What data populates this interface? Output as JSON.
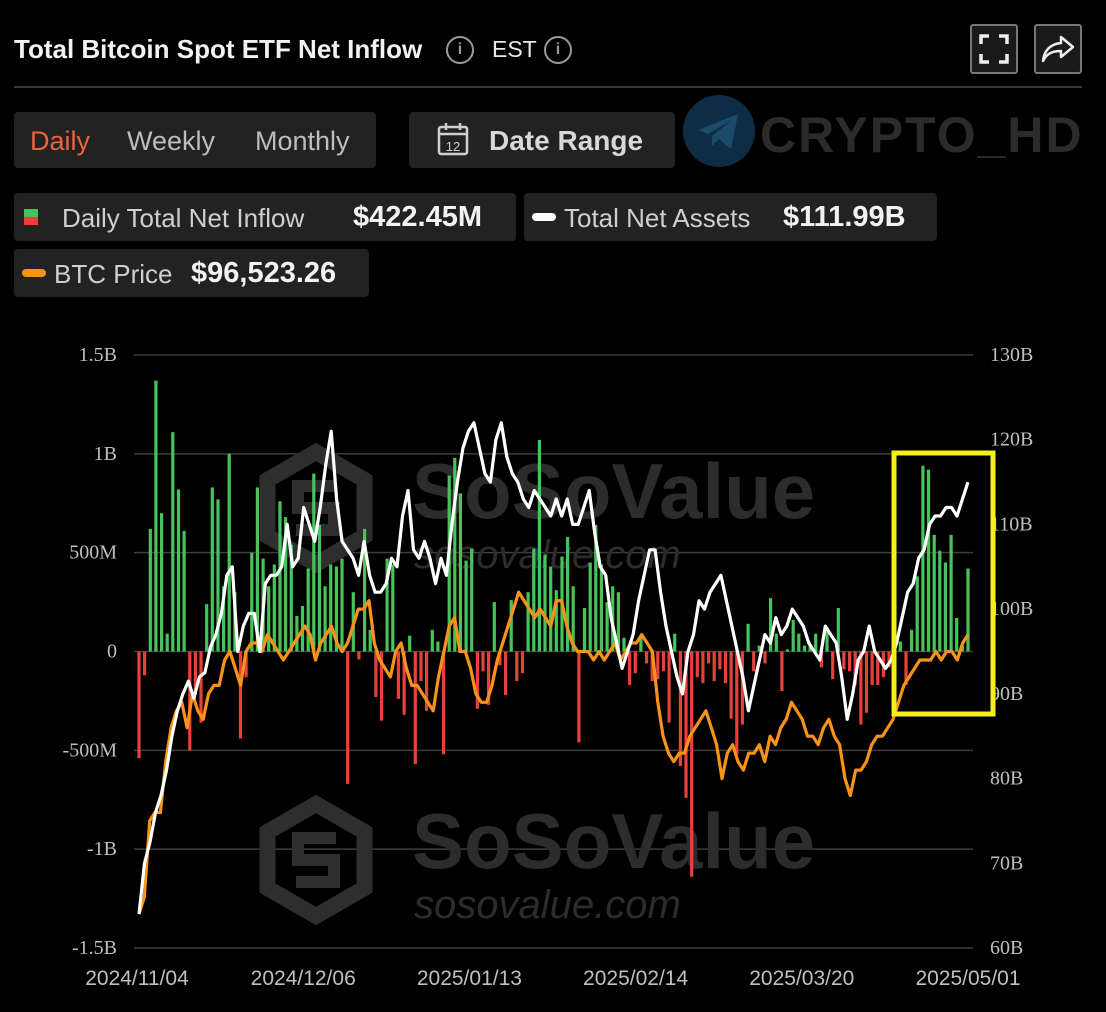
{
  "header": {
    "title": "Total Bitcoin Spot ETF Net Inflow",
    "timezone": "EST",
    "info_icon": "info-icon",
    "fullscreen_icon": "fullscreen-icon",
    "share_icon": "share-icon"
  },
  "period_tabs": [
    {
      "label": "Daily",
      "active": true
    },
    {
      "label": "Weekly",
      "active": false
    },
    {
      "label": "Monthly",
      "active": false
    }
  ],
  "date_range": {
    "label": "Date Range",
    "icon": "calendar-icon",
    "icon_number": "12"
  },
  "watermark_top": {
    "text": "CRYPTO_HD",
    "icon": "telegram-icon"
  },
  "legend": {
    "inflow": {
      "label": "Daily Total Net Inflow",
      "value": "$422.45M"
    },
    "assets": {
      "label": "Total Net Assets",
      "value": "$111.99B"
    },
    "btc": {
      "label": "BTC Price",
      "value": "$96,523.26"
    }
  },
  "colors": {
    "positive_bar": "#46c35a",
    "negative_bar": "#e8413b",
    "assets_line": "#ffffff",
    "btc_line": "#f7931a",
    "highlight_box": "#f5ef1a",
    "active_tab": "#f0623c"
  },
  "chart_data": {
    "type": "bar",
    "left_axis": {
      "ticks": [
        "1.5B",
        "1B",
        "500M",
        "0",
        "-500M",
        "-1B",
        "-1.5B"
      ],
      "range": [
        -1.5,
        1.5
      ],
      "unit": "B"
    },
    "right_axis": {
      "ticks": [
        "130B",
        "120B",
        "110B",
        "100B",
        "90B",
        "80B",
        "70B",
        "60B"
      ],
      "range": [
        60,
        130
      ]
    },
    "x_ticks": [
      "2024/11/04",
      "2024/12/06",
      "2025/01/13",
      "2025/02/14",
      "2025/03/20",
      "2025/05/01"
    ],
    "grid": true,
    "watermark": {
      "brand": "SoSoValue",
      "url": "sosovalue.com"
    },
    "series": [
      {
        "name": "Daily Total Net Inflow",
        "kind": "bar",
        "values_b": [
          -0.54,
          -0.12,
          0.62,
          1.37,
          0.7,
          0.09,
          1.11,
          0.82,
          0.61,
          -0.5,
          -0.22,
          -0.36,
          0.24,
          0.83,
          0.77,
          0.33,
          1.0,
          0.3,
          -0.44,
          -0.13,
          0.5,
          0.83,
          0.47,
          0.33,
          0.44,
          0.76,
          0.68,
          0.54,
          0.18,
          0.23,
          0.42,
          0.9,
          0.64,
          0.33,
          0.44,
          0.43,
          0.47,
          -0.67,
          0.3,
          -0.04,
          0.62,
          0.11,
          -0.23,
          -0.35,
          0.47,
          0.44,
          -0.24,
          -0.32,
          0.08,
          -0.57,
          -0.15,
          -0.3,
          0.11,
          0.05,
          -0.52,
          0.89,
          0.98,
          0.8,
          0.46,
          0.52,
          -0.29,
          -0.1,
          -0.27,
          0.25,
          -0.07,
          -0.22,
          0.26,
          -0.15,
          -0.11,
          0.3,
          0.52,
          1.07,
          0.49,
          0.43,
          0.31,
          0.48,
          0.58,
          0.33,
          -0.46,
          0.22,
          0.45,
          0.64,
          0.44,
          0.25,
          0.33,
          0.3,
          0.07,
          -0.17,
          -0.11,
          0.07,
          -0.06,
          -0.15,
          -0.14,
          -0.1,
          -0.36,
          0.09,
          -0.58,
          -0.74,
          -1.14,
          -0.13,
          -0.16,
          -0.06,
          -0.15,
          -0.09,
          -0.16,
          -0.34,
          -0.52,
          -0.37,
          0.14,
          -0.1,
          0.03,
          -0.06,
          0.27,
          0.09,
          -0.2,
          0.01,
          0.16,
          0.09,
          0.03,
          0.03,
          0.09,
          -0.08,
          0.12,
          -0.14,
          0.22,
          -0.09,
          -0.1,
          -0.17,
          -0.37,
          -0.31,
          -0.17,
          -0.17,
          -0.13,
          -0.08,
          -0.03,
          0.05,
          -0.17,
          0.11,
          0.38,
          0.94,
          0.92,
          0.59,
          0.51,
          0.45,
          0.59,
          0.17,
          0.03,
          0.42
        ]
      },
      {
        "name": "Total Net Assets",
        "kind": "line",
        "axis": "right",
        "values_b": [
          64,
          70,
          72.5,
          76,
          78,
          81,
          85,
          88,
          90,
          91.5,
          89.5,
          92,
          92.5,
          95.5,
          97,
          99.5,
          104,
          105,
          95,
          98,
          99.5,
          99.5,
          95,
          103,
          104,
          104,
          105,
          110,
          105,
          106,
          112,
          110,
          108,
          112,
          117,
          121,
          113,
          108,
          107,
          106,
          104,
          108,
          104,
          102,
          102,
          103,
          106,
          105,
          111,
          114,
          107,
          106,
          108,
          106,
          103,
          106,
          104,
          110,
          115,
          119,
          121,
          122,
          119,
          116,
          115,
          120,
          122,
          118,
          116,
          115,
          113,
          112,
          114,
          113,
          112,
          111,
          113,
          111,
          113,
          110,
          110,
          112,
          114,
          109,
          105,
          104,
          99,
          96,
          93,
          95,
          97,
          101,
          104,
          107,
          107,
          102,
          98,
          95,
          92,
          90,
          95,
          97,
          101,
          100,
          102,
          103,
          104,
          101,
          98,
          95,
          92,
          88,
          91,
          94,
          97,
          96,
          99,
          97,
          98,
          100,
          99,
          98,
          96,
          95,
          94,
          98,
          97,
          96,
          92,
          87,
          90,
          94,
          95,
          98,
          95,
          94,
          93,
          94,
          96,
          99,
          102,
          103,
          106,
          107,
          110,
          111,
          111,
          112,
          112,
          111,
          113,
          115
        ]
      },
      {
        "name": "BTC Price",
        "kind": "line",
        "axis": "right",
        "values_b": [
          64,
          66,
          75,
          76,
          76,
          82,
          86,
          88,
          89,
          86,
          90,
          88,
          87,
          90,
          91,
          91,
          94,
          95,
          93,
          91,
          95,
          96,
          96,
          95,
          97,
          96,
          95,
          94,
          95,
          96,
          97,
          98,
          97,
          94,
          96,
          97,
          98,
          96,
          95,
          96,
          98,
          100,
          100,
          101,
          96,
          94,
          93,
          92,
          95,
          96,
          93,
          91,
          91,
          90,
          89,
          88,
          92,
          95,
          98,
          99,
          95,
          95,
          93,
          90,
          89,
          89,
          91,
          94,
          96,
          98,
          100,
          102,
          101,
          100,
          99,
          100,
          99,
          98,
          101,
          101,
          98,
          96,
          95,
          95,
          95,
          94,
          95,
          94,
          95,
          96,
          94,
          95,
          96,
          96,
          97,
          96,
          95,
          89,
          85,
          83,
          82,
          83,
          83,
          85,
          86,
          87,
          88,
          86,
          84,
          80,
          83,
          84,
          82,
          81,
          83,
          83,
          84,
          82,
          85,
          84,
          86,
          87,
          89,
          88,
          87,
          85,
          85,
          84,
          86,
          87,
          85,
          84,
          80,
          78,
          81,
          81,
          82,
          84,
          85,
          85,
          86,
          87,
          89,
          91,
          92,
          93,
          94,
          94,
          94,
          95,
          94,
          95,
          95,
          94,
          96,
          97
        ]
      }
    ]
  }
}
